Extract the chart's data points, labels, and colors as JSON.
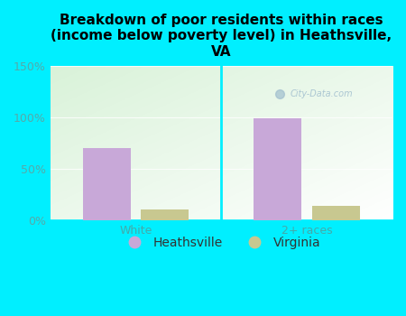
{
  "title": "Breakdown of poor residents within races\n(income below poverty level) in Heathsville,\nVA",
  "categories": [
    "White",
    "2+ races"
  ],
  "heathsville_values": [
    70,
    99
  ],
  "virginia_values": [
    10,
    14
  ],
  "heathsville_color": "#c8a8d8",
  "virginia_color": "#c8c890",
  "background_outer": "#00efff",
  "ylabel_ticks": [
    "0%",
    "50%",
    "100%",
    "150%"
  ],
  "ytick_vals": [
    0,
    50,
    100,
    150
  ],
  "ylim": [
    0,
    150
  ],
  "bar_width": 0.28,
  "title_fontsize": 11,
  "tick_fontsize": 9,
  "legend_fontsize": 10,
  "watermark": "City-Data.com",
  "tick_color": "#55aaaa",
  "label_color": "#44aaaa"
}
